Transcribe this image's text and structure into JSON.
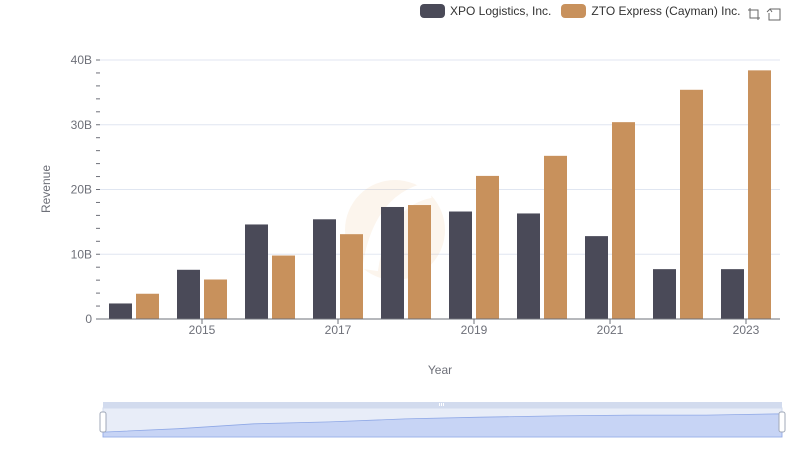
{
  "legend": {
    "items": [
      {
        "label": "XPO Logistics, Inc.",
        "color": "#4a4a58"
      },
      {
        "label": "ZTO Express (Cayman) Inc.",
        "color": "#c8915c"
      }
    ]
  },
  "toolbox": {
    "icons": [
      "zoom-icon",
      "restore-icon"
    ]
  },
  "chart_data": {
    "type": "bar",
    "xlabel": "Year",
    "ylabel": "Revenue",
    "categories": [
      "2014",
      "2015",
      "2016",
      "2017",
      "2018",
      "2019",
      "2020",
      "2021",
      "2022",
      "2023"
    ],
    "x_tick_labels": [
      "2015",
      "2017",
      "2019",
      "2021",
      "2023"
    ],
    "y_ticks": [
      "0",
      "10B",
      "20B",
      "30B",
      "40B"
    ],
    "ylim": [
      0,
      40000000000
    ],
    "grid": true,
    "legend_position": "top-right",
    "series": [
      {
        "name": "XPO Logistics, Inc.",
        "color": "#4a4a58",
        "values": [
          2400000000,
          7600000000,
          14600000000,
          15400000000,
          17300000000,
          16600000000,
          16300000000,
          12800000000,
          7700000000,
          7700000000
        ]
      },
      {
        "name": "ZTO Express (Cayman) Inc.",
        "color": "#c8915c",
        "values": [
          3900000000,
          6100000000,
          9800000000,
          13100000000,
          17600000000,
          22100000000,
          25200000000,
          30400000000,
          35400000000,
          38400000000
        ]
      }
    ]
  }
}
